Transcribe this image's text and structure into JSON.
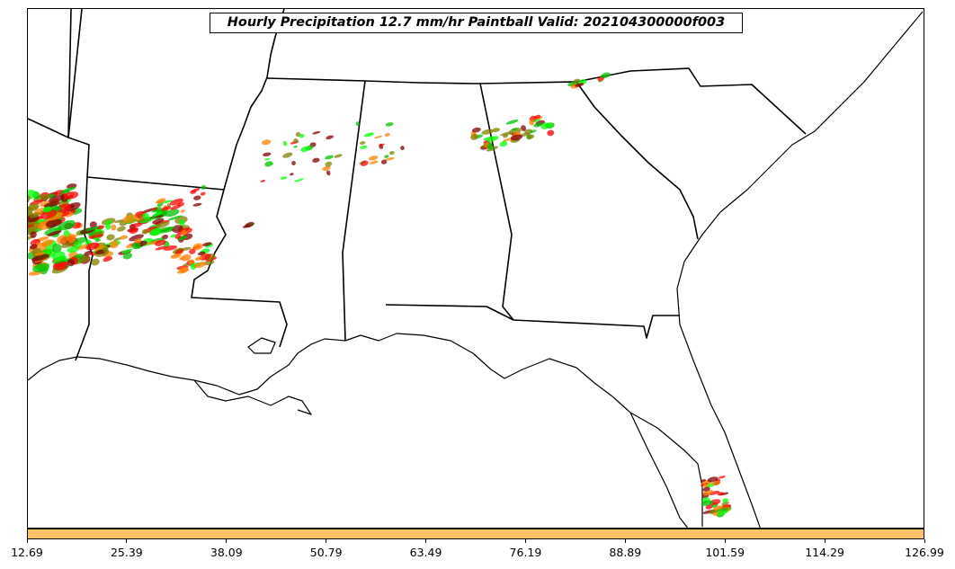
{
  "title": "Hourly Precipitation 12.7 mm/hr Paintball Valid: 202104300000f003",
  "colorbar": {
    "color": "#ffc266",
    "ticks": [
      "12.69",
      "25.39",
      "38.09",
      "50.79",
      "63.49",
      "76.19",
      "88.89",
      "101.59",
      "114.29",
      "126.99"
    ]
  },
  "paintball_colors": [
    "#ff0000",
    "#ff8000",
    "#00c000",
    "#808000",
    "#800000",
    "#00ff00"
  ]
}
